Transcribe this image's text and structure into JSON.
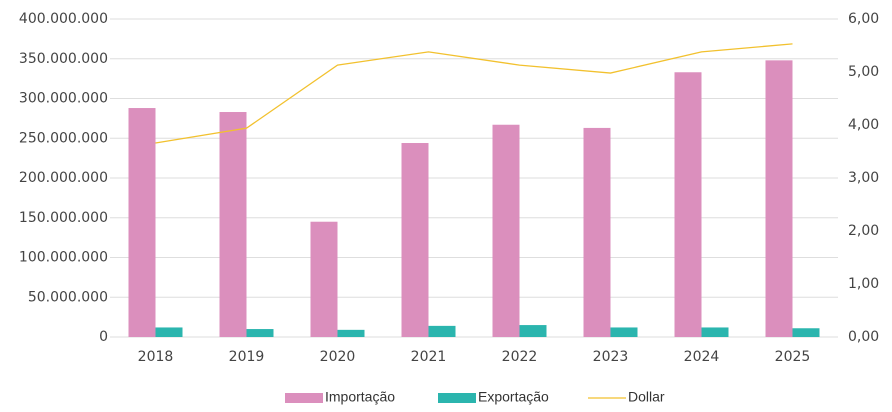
{
  "chart_data": {
    "type": "bar_line",
    "categories": [
      "2018",
      "2019",
      "2020",
      "2021",
      "2022",
      "2023",
      "2024",
      "2025"
    ],
    "series": [
      {
        "name": "Importação",
        "type": "bar",
        "color": "#db8fbd",
        "values": [
          288000000,
          283000000,
          145000000,
          244000000,
          267000000,
          263000000,
          333000000,
          348000000
        ]
      },
      {
        "name": "Exportação",
        "type": "bar",
        "color": "#2bb5ae",
        "values": [
          12000000,
          10000000,
          9000000,
          14000000,
          15000000,
          12000000,
          12000000,
          11000000
        ]
      },
      {
        "name": "Dollar",
        "type": "line",
        "axis": "y2",
        "color": "#f2c12e",
        "values": [
          3.66,
          3.94,
          5.13,
          5.38,
          5.13,
          4.98,
          5.38,
          5.53
        ]
      }
    ],
    "ylim": [
      0,
      400000000
    ],
    "yticks": [
      0,
      {
        "value": 50000000,
        "label": "50.000.000"
      },
      {
        "value": 100000000,
        "label": "100.000.000"
      },
      {
        "value": 150000000,
        "label": "150.000.000"
      },
      {
        "value": 200000000,
        "label": "200.000.000"
      },
      {
        "value": 250000000,
        "label": "250.000.000"
      },
      {
        "value": 300000000,
        "label": "300.000.000"
      },
      {
        "value": 350000000,
        "label": "350.000.000"
      },
      {
        "value": 400000000,
        "label": "400.000.000"
      }
    ],
    "y2lim": [
      0,
      6
    ],
    "y2ticks": [
      {
        "value": 0,
        "label": "0,00"
      },
      {
        "value": 1,
        "label": "1,00"
      },
      {
        "value": 2,
        "label": "2,00"
      },
      {
        "value": 3,
        "label": "3,00"
      },
      {
        "value": 4,
        "label": "4,00"
      },
      {
        "value": 5,
        "label": "5,00"
      },
      {
        "value": 6,
        "label": "6,00"
      }
    ],
    "grid": true,
    "legend": "bottom"
  }
}
